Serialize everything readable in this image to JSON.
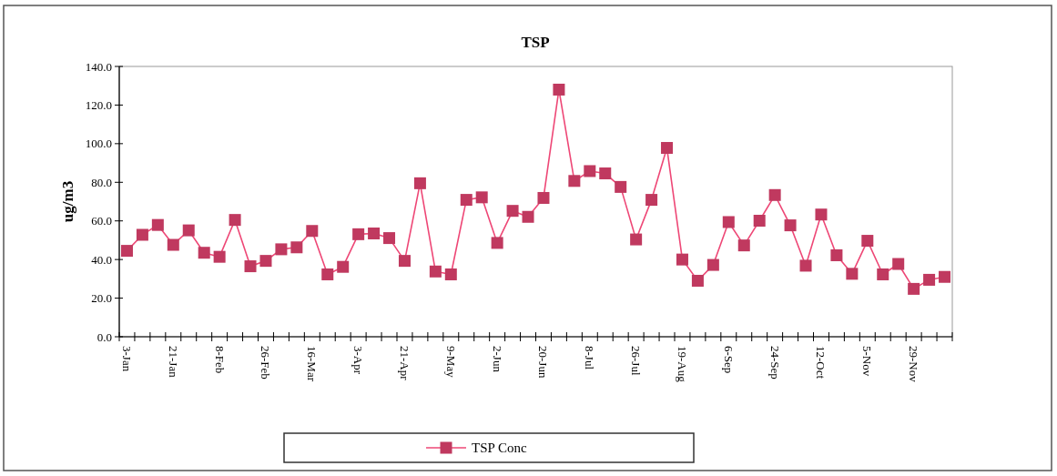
{
  "chart_data": {
    "type": "line",
    "title": "TSP",
    "ylabel": "ug/m3",
    "categories": [
      "3-Jan",
      null,
      null,
      "21-Jan",
      null,
      null,
      "8-Feb",
      null,
      null,
      "26-Feb",
      null,
      null,
      "16-Mar",
      null,
      null,
      "3-Apr",
      null,
      null,
      "21-Apr",
      null,
      null,
      "9-May",
      null,
      null,
      "2-Jun",
      null,
      null,
      "20-Jun",
      null,
      null,
      "8-Jul",
      null,
      null,
      "26-Jul",
      null,
      null,
      "19-Aug",
      null,
      null,
      "6-Sep",
      null,
      null,
      "24-Sep",
      null,
      null,
      "12-Oct",
      null,
      null,
      "5-Nov",
      null,
      null,
      "29-Nov",
      null,
      null
    ],
    "series": [
      {
        "name": "TSP Conc",
        "color": "#c0395f",
        "values": [
          44.5,
          52.8,
          57.9,
          47.6,
          55.1,
          43.5,
          41.4,
          60.5,
          36.5,
          39.3,
          45.3,
          46.3,
          54.8,
          32.3,
          36.2,
          53.1,
          53.5,
          51.1,
          39.3,
          79.5,
          33.8,
          32.3,
          70.9,
          72.2,
          48.6,
          65.2,
          62.1,
          71.9,
          128.0,
          80.7,
          85.8,
          84.6,
          77.6,
          50.4,
          70.9,
          97.8,
          40.0,
          29.0,
          37.2,
          59.4,
          47.3,
          60.1,
          73.4,
          57.7,
          36.8,
          63.3,
          42.2,
          32.6,
          49.7,
          32.3,
          37.7,
          24.8,
          29.5,
          31.0
        ]
      }
    ],
    "ylim": [
      0,
      140
    ],
    "yticks": [
      {
        "value": 0,
        "label": "0.0"
      },
      {
        "value": 20,
        "label": "20.0"
      },
      {
        "value": 40,
        "label": "40.0"
      },
      {
        "value": 60,
        "label": "60.0"
      },
      {
        "value": 80,
        "label": "80.0"
      },
      {
        "value": 100,
        "label": "100.0"
      },
      {
        "value": 120,
        "label": "120.0"
      },
      {
        "value": 140,
        "label": "140.0"
      }
    ],
    "marker": "square",
    "line_style": "solid",
    "grid": false,
    "legend": "bottom"
  }
}
